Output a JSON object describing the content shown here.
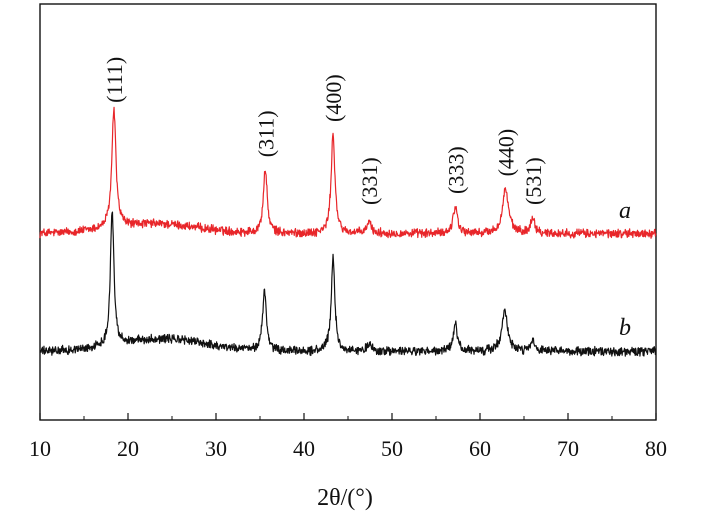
{
  "chart_data": {
    "type": "line",
    "title": "",
    "xlabel": "2θ/(°)",
    "ylabel": "",
    "xlim": [
      10,
      80
    ],
    "x_ticks": [
      "10",
      "20",
      "30",
      "40",
      "50",
      "60",
      "70",
      "80"
    ],
    "grid": false,
    "series": [
      {
        "name": "a",
        "color": "#e8262a",
        "baseline": 0.04,
        "hump": {
          "center": 23,
          "width": 7,
          "height": 0.06
        },
        "peaks": [
          {
            "x": 18.4,
            "height": 0.74,
            "width": 0.28,
            "label": "(111)"
          },
          {
            "x": 35.6,
            "height": 0.4,
            "width": 0.26,
            "label": "(311)"
          },
          {
            "x": 43.3,
            "height": 0.62,
            "width": 0.26,
            "label": "(400)"
          },
          {
            "x": 47.4,
            "height": 0.07,
            "width": 0.3,
            "label": "(331)"
          },
          {
            "x": 57.2,
            "height": 0.17,
            "width": 0.3,
            "label": "(333)"
          },
          {
            "x": 62.9,
            "height": 0.28,
            "width": 0.4,
            "label": "(440)"
          },
          {
            "x": 66.0,
            "height": 0.1,
            "width": 0.28,
            "label": "(531)"
          }
        ]
      },
      {
        "name": "b",
        "color": "#111111",
        "baseline": 0.04,
        "hump": {
          "center": 24,
          "width": 7,
          "height": 0.08
        },
        "peaks": [
          {
            "x": 18.2,
            "height": 0.85,
            "width": 0.24
          },
          {
            "x": 35.5,
            "height": 0.38,
            "width": 0.25
          },
          {
            "x": 43.3,
            "height": 0.58,
            "width": 0.25
          },
          {
            "x": 47.4,
            "height": 0.05,
            "width": 0.28
          },
          {
            "x": 57.2,
            "height": 0.17,
            "width": 0.28
          },
          {
            "x": 62.8,
            "height": 0.25,
            "width": 0.4
          },
          {
            "x": 66.0,
            "height": 0.06,
            "width": 0.28
          }
        ]
      }
    ]
  }
}
